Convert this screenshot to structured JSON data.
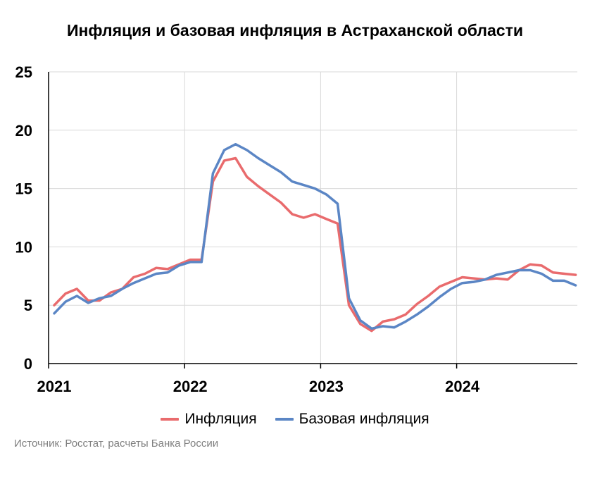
{
  "chart_data": {
    "type": "line",
    "title": "Инфляция и базовая инфляция в Астраханской области",
    "source": "Источник: Росстат, расчеты Банка России",
    "x_start_year": 2021,
    "x_labels": [
      "2021",
      "2022",
      "2023",
      "2024"
    ],
    "ylim": [
      0,
      25
    ],
    "y_ticks": [
      "0",
      "5",
      "10",
      "15",
      "20",
      "25"
    ],
    "grid": true,
    "legend_position": "bottom",
    "colors": {
      "inflation": "#e96b6d",
      "core": "#5b86c5"
    },
    "series": [
      {
        "name": "Инфляция",
        "color": "#e96b6d",
        "values": [
          5.0,
          6.0,
          6.4,
          5.4,
          5.4,
          6.1,
          6.4,
          7.4,
          7.7,
          8.2,
          8.1,
          8.5,
          8.9,
          8.9,
          15.6,
          17.4,
          17.6,
          16.0,
          15.2,
          14.5,
          13.8,
          12.8,
          12.5,
          12.8,
          12.4,
          12.0,
          5.0,
          3.4,
          2.8,
          3.6,
          3.8,
          4.2,
          5.1,
          5.8,
          6.6,
          7.0,
          7.4,
          7.3,
          7.2,
          7.3,
          7.2,
          8.0,
          8.5,
          8.4,
          7.8,
          7.7,
          7.6
        ]
      },
      {
        "name": "Базовая инфляция",
        "color": "#5b86c5",
        "values": [
          4.3,
          5.3,
          5.8,
          5.2,
          5.6,
          5.8,
          6.4,
          6.9,
          7.3,
          7.7,
          7.8,
          8.4,
          8.7,
          8.7,
          16.3,
          18.3,
          18.8,
          18.3,
          17.6,
          17.0,
          16.4,
          15.6,
          15.3,
          15.0,
          14.5,
          13.7,
          5.6,
          3.7,
          3.0,
          3.2,
          3.1,
          3.6,
          4.2,
          4.9,
          5.7,
          6.4,
          6.9,
          7.0,
          7.2,
          7.6,
          7.8,
          8.0,
          8.0,
          7.7,
          7.1,
          7.1,
          6.7
        ]
      }
    ]
  }
}
